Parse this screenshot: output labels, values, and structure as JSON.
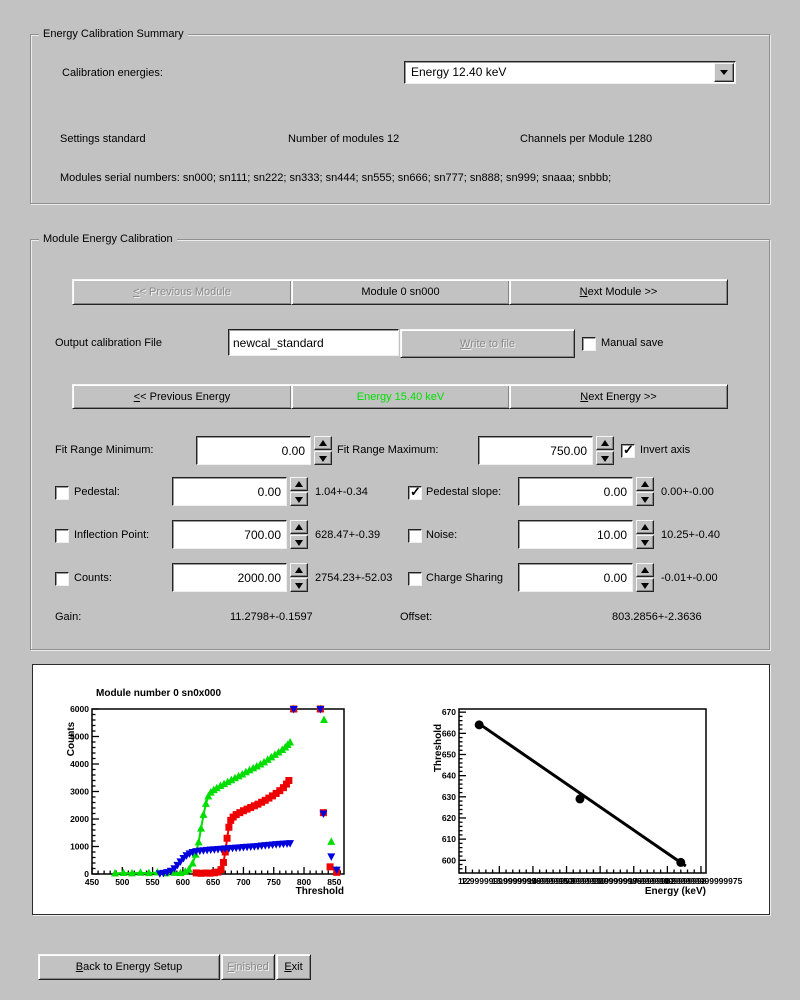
{
  "summary": {
    "title": "Energy Calibration Summary",
    "calibration_energies_label": "Calibration energies:",
    "energy_select_value": "Energy 12.40 keV",
    "settings": "Settings standard",
    "num_modules": "Number of modules 12",
    "channels_per_module": "Channels per Module 1280",
    "serials": "Modules serial numbers: sn000; sn111; sn222; sn333; sn444; sn555; sn666; sn777; sn888; sn999; snaaa; snbbb;"
  },
  "module_cal": {
    "title": "Module Energy Calibration",
    "prev_module": {
      "label": "<< Previous Module",
      "u": 0
    },
    "module_label": "Module 0 sn000",
    "next_module": {
      "label": "Next Module >>",
      "u": 0
    },
    "output_file_label": "Output calibration File",
    "output_file_value": "newcal_standard",
    "write_to_file": {
      "label": "Write to file",
      "u": 0
    },
    "manual_save_label": "Manual save",
    "manual_save_checked": false,
    "prev_energy": {
      "label": "<< Previous Energy",
      "u": 0
    },
    "energy_label": "Energy 15.40 keV",
    "energy_label_color": "#00e000",
    "next_energy": {
      "label": "Next Energy >>",
      "u": 0
    },
    "fit_min_label": "Fit Range Minimum:",
    "fit_min_value": "0.00",
    "fit_max_label": "Fit Range Maximum:",
    "fit_max_value": "750.00",
    "invert_axis_label": "Invert axis",
    "invert_axis_checked": true,
    "params_left": [
      {
        "label": "Pedestal:",
        "checked": false,
        "value": "0.00",
        "result": "1.04+-0.34"
      },
      {
        "label": "Inflection Point:",
        "checked": false,
        "value": "700.00",
        "result": "628.47+-0.39"
      },
      {
        "label": "Counts:",
        "checked": false,
        "value": "2000.00",
        "result": "2754.23+-52.03"
      }
    ],
    "params_right": [
      {
        "label": "Pedestal slope:",
        "checked": true,
        "value": "0.00",
        "result": "0.00+-0.00"
      },
      {
        "label": "Noise:",
        "checked": false,
        "value": "10.00",
        "result": "10.25+-0.40"
      },
      {
        "label": "Charge Sharing",
        "checked": false,
        "value": "0.00",
        "result": "-0.01+-0.00"
      }
    ],
    "gain_label": "Gain:",
    "gain_value": "11.2798+-0.1597",
    "offset_label": "Offset:",
    "offset_value": "803.2856+-2.3636"
  },
  "footer": {
    "back": {
      "label": "Back to Energy Setup",
      "u": 0
    },
    "finished": {
      "label": "Finished",
      "u": 0
    },
    "exit": {
      "label": "Exit",
      "u": 0
    }
  },
  "chart_data": [
    {
      "type": "scatter",
      "title": "Module number 0 sn0x000",
      "xlabel": "Threshold",
      "ylabel": "Counts",
      "xlim": [
        450,
        866
      ],
      "ylim": [
        0,
        6000
      ],
      "xticks": [
        450,
        500,
        550,
        600,
        650,
        700,
        750,
        800,
        850
      ],
      "yticks": [
        0,
        1000,
        2000,
        3000,
        4000,
        5000,
        6000
      ],
      "grid": false,
      "series": [
        {
          "name": "green-scan-curve",
          "color": "#00dd00",
          "marker": "triangle-up",
          "line": true,
          "points": [
            [
              488,
              20
            ],
            [
              502,
              35
            ],
            [
              516,
              25
            ],
            [
              530,
              45
            ],
            [
              544,
              30
            ],
            [
              558,
              55
            ],
            [
              572,
              25
            ],
            [
              586,
              40
            ],
            [
              596,
              30
            ],
            [
              604,
              80
            ],
            [
              610,
              160
            ],
            [
              616,
              380
            ],
            [
              621,
              700
            ],
            [
              626,
              1150
            ],
            [
              630,
              1650
            ],
            [
              634,
              2150
            ],
            [
              638,
              2550
            ],
            [
              642,
              2820
            ],
            [
              646,
              2960
            ],
            [
              651,
              3050
            ],
            [
              656,
              3120
            ],
            [
              662,
              3200
            ],
            [
              668,
              3270
            ],
            [
              674,
              3340
            ],
            [
              680,
              3410
            ],
            [
              686,
              3480
            ],
            [
              692,
              3550
            ],
            [
              698,
              3620
            ],
            [
              704,
              3700
            ],
            [
              710,
              3770
            ],
            [
              716,
              3840
            ],
            [
              722,
              3910
            ],
            [
              728,
              3980
            ],
            [
              734,
              4060
            ],
            [
              740,
              4150
            ],
            [
              746,
              4240
            ],
            [
              752,
              4330
            ],
            [
              758,
              4420
            ],
            [
              764,
              4510
            ],
            [
              769,
              4600
            ],
            [
              773,
              4690
            ],
            [
              777,
              4780
            ]
          ]
        },
        {
          "name": "green-extra-points",
          "color": "#00dd00",
          "marker": "triangle-up",
          "line": false,
          "points": [
            [
              783,
              6000
            ],
            [
              827,
              6000
            ],
            [
              833,
              5600
            ],
            [
              845,
              1170
            ],
            [
              854,
              130
            ]
          ]
        },
        {
          "name": "red-scan-curve",
          "color": "#ee0000",
          "marker": "square",
          "line": true,
          "points": [
            [
              622,
              40
            ],
            [
              630,
              25
            ],
            [
              638,
              35
            ],
            [
              645,
              30
            ],
            [
              652,
              45
            ],
            [
              658,
              70
            ],
            [
              663,
              160
            ],
            [
              667,
              420
            ],
            [
              670,
              800
            ],
            [
              673,
              1300
            ],
            [
              676,
              1700
            ],
            [
              679,
              1950
            ],
            [
              683,
              2070
            ],
            [
              688,
              2160
            ],
            [
              694,
              2230
            ],
            [
              700,
              2300
            ],
            [
              706,
              2360
            ],
            [
              712,
              2420
            ],
            [
              718,
              2480
            ],
            [
              724,
              2540
            ],
            [
              730,
              2610
            ],
            [
              736,
              2680
            ],
            [
              742,
              2760
            ],
            [
              748,
              2840
            ],
            [
              754,
              2930
            ],
            [
              760,
              3030
            ],
            [
              766,
              3140
            ],
            [
              771,
              3270
            ],
            [
              775,
              3400
            ]
          ]
        },
        {
          "name": "red-extra-points",
          "color": "#ee0000",
          "marker": "square",
          "line": false,
          "points": [
            [
              783,
              6000
            ],
            [
              827,
              6000
            ],
            [
              832,
              2230
            ],
            [
              843,
              260
            ],
            [
              854,
              60
            ]
          ]
        },
        {
          "name": "blue-scan-curve",
          "color": "#0000dd",
          "marker": "triangle-down",
          "line": true,
          "points": [
            [
              562,
              25
            ],
            [
              568,
              40
            ],
            [
              574,
              70
            ],
            [
              580,
              120
            ],
            [
              586,
              210
            ],
            [
              591,
              330
            ],
            [
              596,
              460
            ],
            [
              601,
              580
            ],
            [
              606,
              680
            ],
            [
              611,
              750
            ],
            [
              616,
              800
            ],
            [
              622,
              830
            ],
            [
              628,
              850
            ],
            [
              634,
              865
            ],
            [
              640,
              878
            ],
            [
              646,
              890
            ],
            [
              652,
              900
            ],
            [
              658,
              910
            ],
            [
              664,
              920
            ],
            [
              670,
              930
            ],
            [
              676,
              940
            ],
            [
              682,
              950
            ],
            [
              688,
              960
            ],
            [
              694,
              970
            ],
            [
              700,
              980
            ],
            [
              706,
              990
            ],
            [
              712,
              1000
            ],
            [
              718,
              1010
            ],
            [
              724,
              1020
            ],
            [
              730,
              1035
            ],
            [
              736,
              1048
            ],
            [
              742,
              1060
            ],
            [
              748,
              1072
            ],
            [
              754,
              1085
            ],
            [
              760,
              1095
            ],
            [
              766,
              1105
            ],
            [
              772,
              1115
            ],
            [
              777,
              1125
            ]
          ]
        },
        {
          "name": "blue-extra-points",
          "color": "#0000dd",
          "marker": "triangle-down",
          "line": false,
          "points": [
            [
              783,
              6000
            ],
            [
              827,
              6000
            ],
            [
              832,
              2200
            ],
            [
              845,
              640
            ],
            [
              854,
              160
            ]
          ]
        }
      ]
    },
    {
      "type": "scatter",
      "title": "",
      "xlabel": "Energy (keV)",
      "ylabel": "Threshold",
      "xlim": [
        11.8,
        19.15
      ],
      "ylim": [
        594,
        671.5
      ],
      "xticks": [
        12,
        13,
        14,
        15,
        16,
        17,
        18,
        19
      ],
      "yticks": [
        600,
        610,
        620,
        630,
        640,
        650,
        660,
        670
      ],
      "grid": false,
      "series": [
        {
          "name": "calibration-fit-line",
          "color": "#000000",
          "marker": null,
          "line": true,
          "width": 3,
          "points": [
            [
              12.4,
              664.5
            ],
            [
              18.55,
              597.3
            ]
          ]
        },
        {
          "name": "calibration-points",
          "color": "#000000",
          "marker": "circle",
          "line": false,
          "size": 9,
          "points": [
            [
              12.4,
              664
            ],
            [
              15.4,
              629
            ],
            [
              18.4,
              599
            ]
          ]
        }
      ]
    }
  ]
}
